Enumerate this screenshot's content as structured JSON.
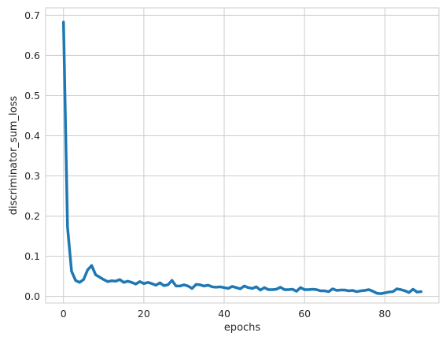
{
  "chart_data": {
    "type": "line",
    "title": "",
    "xlabel": "epochs",
    "ylabel": "discriminator_sum_loss",
    "xlim": [
      -4.45,
      93.45
    ],
    "ylim": [
      -0.0163,
      0.7184
    ],
    "grid": true,
    "x_ticks": [
      0,
      20,
      40,
      60,
      80
    ],
    "y_ticks": [
      0.0,
      0.1,
      0.2,
      0.3,
      0.4,
      0.5,
      0.6,
      0.7
    ],
    "x_tick_labels": [
      "0",
      "20",
      "40",
      "60",
      "80"
    ],
    "y_tick_labels": [
      "0.0",
      "0.1",
      "0.2",
      "0.3",
      "0.4",
      "0.5",
      "0.6",
      "0.7"
    ],
    "series_color": "#1f77b4",
    "series": [
      {
        "x": [
          0,
          1,
          2,
          3,
          4,
          5,
          6,
          7,
          8,
          9,
          10,
          11,
          12,
          13,
          14,
          15,
          16,
          17,
          18,
          19,
          20,
          21,
          22,
          23,
          24,
          25,
          26,
          27,
          28,
          29,
          30,
          31,
          32,
          33,
          34,
          35,
          36,
          37,
          38,
          39,
          40,
          41,
          42,
          43,
          44,
          45,
          46,
          47,
          48,
          49,
          50,
          51,
          52,
          53,
          54,
          55,
          56,
          57,
          58,
          59,
          60,
          61,
          62,
          63,
          64,
          65,
          66,
          67,
          68,
          69,
          70,
          71,
          72,
          73,
          74,
          75,
          76,
          77,
          78,
          79,
          80,
          81,
          82,
          83,
          84,
          85,
          86,
          87,
          88,
          89
        ],
        "values": [
          0.683,
          0.173,
          0.063,
          0.04,
          0.035,
          0.042,
          0.066,
          0.077,
          0.054,
          0.048,
          0.042,
          0.037,
          0.039,
          0.038,
          0.042,
          0.035,
          0.038,
          0.035,
          0.031,
          0.037,
          0.032,
          0.035,
          0.032,
          0.028,
          0.034,
          0.027,
          0.029,
          0.04,
          0.026,
          0.026,
          0.029,
          0.026,
          0.02,
          0.03,
          0.029,
          0.026,
          0.028,
          0.024,
          0.023,
          0.024,
          0.022,
          0.02,
          0.025,
          0.022,
          0.019,
          0.026,
          0.022,
          0.02,
          0.024,
          0.016,
          0.022,
          0.017,
          0.017,
          0.018,
          0.023,
          0.017,
          0.017,
          0.018,
          0.013,
          0.022,
          0.017,
          0.017,
          0.018,
          0.017,
          0.014,
          0.014,
          0.012,
          0.019,
          0.015,
          0.016,
          0.016,
          0.014,
          0.015,
          0.012,
          0.014,
          0.015,
          0.017,
          0.013,
          0.008,
          0.007,
          0.009,
          0.011,
          0.012,
          0.019,
          0.017,
          0.014,
          0.01,
          0.018,
          0.011,
          0.012
        ]
      }
    ]
  }
}
